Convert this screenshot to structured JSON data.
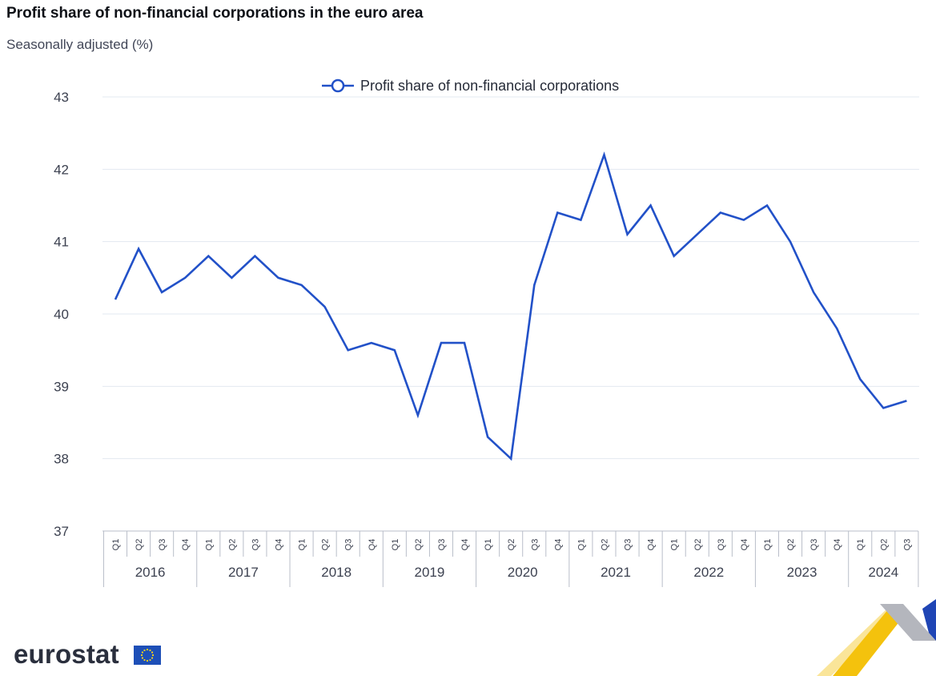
{
  "brand": {
    "name": "eurostat"
  },
  "chart_data": {
    "type": "line",
    "title": "Profit share of non-financial corporations in the euro area",
    "subtitle": "Seasonally adjusted (%)",
    "xlabel": "",
    "ylabel": "",
    "ylim": [
      37,
      43
    ],
    "yticks": [
      "37",
      "38",
      "39",
      "40",
      "41",
      "42",
      "43"
    ],
    "legend_position": "top-center",
    "grid": true,
    "years": [
      "2016",
      "2017",
      "2018",
      "2019",
      "2020",
      "2021",
      "2022",
      "2023",
      "2024"
    ],
    "quarter_labels": [
      "Q1",
      "Q2",
      "Q3",
      "Q4"
    ],
    "categories": [
      "2016-Q1",
      "2016-Q2",
      "2016-Q3",
      "2016-Q4",
      "2017-Q1",
      "2017-Q2",
      "2017-Q3",
      "2017-Q4",
      "2018-Q1",
      "2018-Q2",
      "2018-Q3",
      "2018-Q4",
      "2019-Q1",
      "2019-Q2",
      "2019-Q3",
      "2019-Q4",
      "2020-Q1",
      "2020-Q2",
      "2020-Q3",
      "2020-Q4",
      "2021-Q1",
      "2021-Q2",
      "2021-Q3",
      "2021-Q4",
      "2022-Q1",
      "2022-Q2",
      "2022-Q3",
      "2022-Q4",
      "2023-Q1",
      "2023-Q2",
      "2023-Q3",
      "2023-Q4",
      "2024-Q1",
      "2024-Q2",
      "2024-Q3"
    ],
    "series": [
      {
        "name": "Profit share of non-financial corporations",
        "color": "#2251c8",
        "values": [
          40.2,
          40.9,
          40.3,
          40.5,
          40.8,
          40.5,
          40.8,
          40.5,
          40.4,
          40.1,
          39.5,
          39.6,
          39.5,
          38.6,
          39.6,
          39.6,
          38.3,
          38.0,
          40.4,
          41.4,
          41.3,
          42.2,
          41.1,
          41.5,
          40.8,
          41.1,
          41.4,
          41.3,
          41.5,
          41.0,
          40.3,
          39.8,
          39.1,
          38.7,
          38.8
        ]
      }
    ]
  }
}
